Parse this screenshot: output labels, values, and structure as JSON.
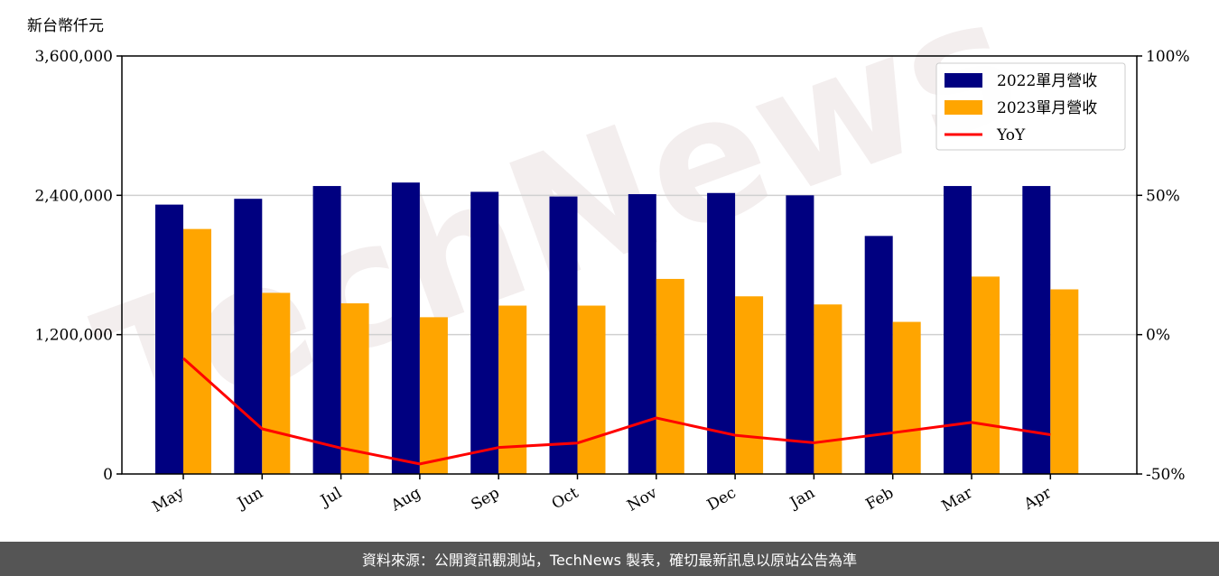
{
  "unit_label": "新台幣仟元",
  "footer_text": "資料來源：公開資訊觀測站，TechNews 製表，確切最新訊息以原站公告為準",
  "watermark_text": "TechNews",
  "colors": {
    "bar_2022": "#000080",
    "bar_2023": "#FFA500",
    "yoy_line": "#FF0000",
    "grid": "#d0d0d0",
    "footer_bg": "#555555"
  },
  "chart_data": {
    "type": "bar",
    "categories": [
      "May",
      "Jun",
      "Jul",
      "Aug",
      "Sep",
      "Oct",
      "Nov",
      "Dec",
      "Jan",
      "Feb",
      "Mar",
      "Apr"
    ],
    "series": [
      {
        "name": "2022單月營收",
        "type": "bar",
        "axis": "left",
        "values": [
          2320000,
          2370000,
          2480000,
          2510000,
          2430000,
          2390000,
          2410000,
          2420000,
          2400000,
          2050000,
          2480000,
          2480000
        ]
      },
      {
        "name": "2023單月營收",
        "type": "bar",
        "axis": "left",
        "values": [
          2110000,
          1560000,
          1470000,
          1350000,
          1450000,
          1450000,
          1680000,
          1530000,
          1460000,
          1310000,
          1700000,
          1590000
        ]
      },
      {
        "name": "YoY",
        "type": "line",
        "axis": "right",
        "values": [
          -8.5,
          -33.8,
          -40.7,
          -46.4,
          -40.5,
          -38.9,
          -29.9,
          -36.1,
          -38.8,
          -35.2,
          -31.5,
          -35.9
        ]
      }
    ],
    "y_left": {
      "ylim": [
        0,
        3600000
      ],
      "ticks": [
        "0",
        "1,200,000",
        "2,400,000",
        "3,600,000"
      ],
      "tick_values": [
        0,
        1200000,
        2400000,
        3600000
      ]
    },
    "y_right": {
      "ylim": [
        -50,
        100
      ],
      "ticks": [
        "-50%",
        "0%",
        "50%",
        "100%"
      ],
      "tick_values": [
        -50,
        0,
        50,
        100
      ]
    },
    "legend_placement": "top-right",
    "grid": "horizontal"
  }
}
